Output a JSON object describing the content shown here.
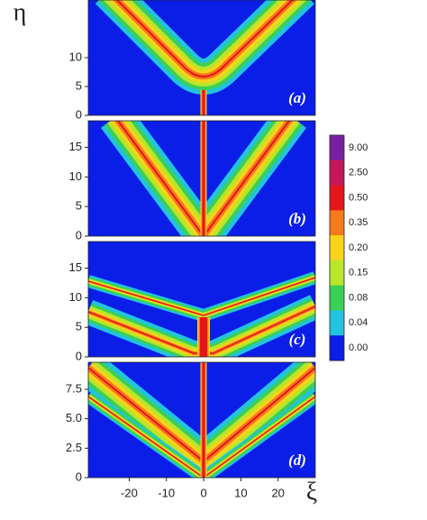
{
  "chart_data": [
    {
      "type": "contour",
      "panel_label": "(a)",
      "ylabel": "η",
      "ylim": [
        0,
        20
      ],
      "yticks": [
        0,
        5,
        10
      ]
    },
    {
      "type": "contour",
      "panel_label": "(b)",
      "ylim": [
        0,
        19.5
      ],
      "yticks": [
        0,
        5,
        10,
        15
      ]
    },
    {
      "type": "contour",
      "panel_label": "(c)",
      "ylim": [
        0,
        19.5
      ],
      "yticks": [
        0,
        5,
        10,
        15
      ]
    },
    {
      "type": "contour",
      "panel_label": "(d)",
      "xlabel": "ξ",
      "xlim": [
        -31,
        30
      ],
      "xticks": [
        -20,
        -10,
        0,
        10,
        20
      ],
      "ylim": [
        0,
        9.8
      ],
      "yticks": [
        0,
        2.5,
        {
          "value": 5,
          "label": "5.0"
        },
        7.5
      ]
    }
  ],
  "colorbar": {
    "levels": [
      {
        "value": 9,
        "label": "9.00"
      },
      {
        "value": 2.5,
        "label": "2.50"
      },
      {
        "value": 0.5,
        "label": "0.50"
      },
      {
        "value": 0.35,
        "label": "0.35"
      },
      {
        "value": 0.2,
        "label": "0.20"
      },
      {
        "value": 0.15,
        "label": "0.15"
      },
      {
        "value": 0.08,
        "label": "0.08"
      },
      {
        "value": 0.04,
        "label": "0.04"
      },
      {
        "value": 0,
        "label": "0.00"
      }
    ],
    "colors": [
      "#7b1fa2",
      "#c2185b",
      "#e8141c",
      "#f47a1c",
      "#f9d21a",
      "#b8e62b",
      "#3ccf55",
      "#22c3e0",
      "#0a1ee8"
    ]
  }
}
